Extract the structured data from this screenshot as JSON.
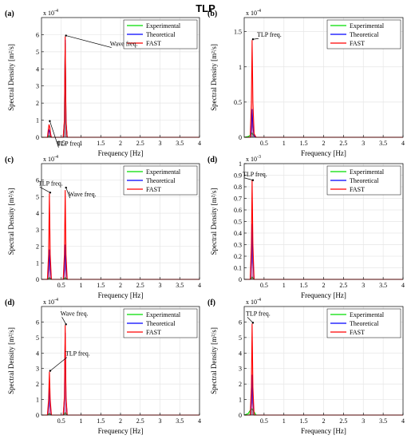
{
  "figure_title": "TLP",
  "colors": {
    "Experimental": "#00dd00",
    "Theoretical": "#0000ff",
    "FAST": "#ff0000",
    "grid": "#e6e6e6"
  },
  "chart_data": [
    {
      "panel": "(a)",
      "type": "line",
      "xlabel": "Frequency [Hz]",
      "ylabel": "Spectral Density [m²/s]",
      "exponent": "x 10",
      "exponent_power": "-4",
      "xlim": [
        0,
        4
      ],
      "ylim": [
        0,
        7
      ],
      "xticks": [
        0.5,
        1,
        1.5,
        2,
        2.5,
        3,
        3.5,
        4
      ],
      "yticks": [
        0,
        1,
        2,
        3,
        4,
        5,
        6
      ],
      "grid": true,
      "legend_position": "top-right",
      "legend": [
        "Experimental",
        "Theoretical",
        "FAST"
      ],
      "annotations": [
        {
          "text": "Wave freq.",
          "x": 0.6,
          "y": 5.9
        },
        {
          "text": "TLP freq.",
          "x": 0.19,
          "y": 0.9
        }
      ],
      "series": [
        {
          "name": "Experimental",
          "x": [
            0,
            0.15,
            0.19,
            0.22,
            0.25,
            0.55,
            0.58,
            0.6,
            0.62,
            0.65,
            1.0,
            4.0
          ],
          "y": [
            0,
            0,
            0.1,
            0.05,
            0,
            0,
            0.8,
            5.5,
            0.8,
            0,
            0,
            0
          ]
        },
        {
          "name": "Theoretical",
          "x": [
            0,
            0.15,
            0.19,
            0.22,
            0.25,
            0.55,
            0.58,
            0.6,
            0.62,
            0.65,
            1.0,
            4.0
          ],
          "y": [
            0,
            0,
            0.45,
            0.2,
            0,
            0,
            0.9,
            5.7,
            0.9,
            0,
            0,
            0
          ]
        },
        {
          "name": "FAST",
          "x": [
            0,
            0.15,
            0.17,
            0.19,
            0.21,
            0.23,
            0.25,
            0.55,
            0.58,
            0.6,
            0.62,
            0.65,
            1.0,
            4.0
          ],
          "y": [
            0,
            0,
            0.4,
            0.75,
            0.6,
            0.2,
            0,
            0,
            1.0,
            5.9,
            1.0,
            0,
            0,
            0
          ]
        }
      ]
    },
    {
      "panel": "(b)",
      "type": "line",
      "xlabel": "Frequency [Hz]",
      "ylabel": "Spectral Density [m²/s]",
      "exponent": "x 10",
      "exponent_power": "-4",
      "xlim": [
        0,
        4
      ],
      "ylim": [
        0,
        1.7
      ],
      "xticks": [
        0.5,
        1,
        1.5,
        2,
        2.5,
        3,
        3.5,
        4
      ],
      "yticks": [
        0,
        0.5,
        1,
        1.5
      ],
      "grid": true,
      "legend_position": "top-right",
      "legend": [
        "Experimental",
        "Theoretical",
        "FAST"
      ],
      "annotations": [
        {
          "text": "TLP freq.",
          "x": 0.2,
          "y": 1.38
        }
      ],
      "series": [
        {
          "name": "Experimental",
          "x": [
            0,
            0.1,
            0.15,
            0.18,
            0.2,
            0.22,
            0.25,
            0.3,
            4.0
          ],
          "y": [
            0,
            0.01,
            0.03,
            0.05,
            0.06,
            0.04,
            0.02,
            0,
            0
          ]
        },
        {
          "name": "Theoretical",
          "x": [
            0,
            0.15,
            0.18,
            0.2,
            0.22,
            0.25,
            0.3,
            4.0
          ],
          "y": [
            0,
            0,
            0.1,
            0.4,
            0.15,
            0.02,
            0,
            0
          ]
        },
        {
          "name": "FAST",
          "x": [
            0,
            0.15,
            0.18,
            0.2,
            0.22,
            0.25,
            0.3,
            4.0
          ],
          "y": [
            0,
            0,
            0.5,
            1.38,
            0.5,
            0.05,
            0,
            0
          ]
        }
      ]
    },
    {
      "panel": "(c)",
      "type": "line",
      "xlabel": "Frequency [Hz]",
      "ylabel": "Spectral Density [m²/s]",
      "exponent": "x 10",
      "exponent_power": "-4",
      "xlim": [
        0,
        4
      ],
      "ylim": [
        0,
        7
      ],
      "xticks": [
        0.5,
        1,
        1.5,
        2,
        2.5,
        3,
        3.5,
        4
      ],
      "yticks": [
        0,
        1,
        2,
        3,
        4,
        5,
        6
      ],
      "grid": true,
      "legend_position": "top-right",
      "legend": [
        "Experimental",
        "Theoretical",
        "FAST"
      ],
      "annotations": [
        {
          "text": "TLP freq.",
          "x": 0.2,
          "y": 5.2
        },
        {
          "text": "Wave freq.",
          "x": 0.6,
          "y": 5.5
        }
      ],
      "series": [
        {
          "name": "Experimental",
          "x": [
            0,
            0.15,
            0.2,
            0.25,
            0.55,
            0.6,
            0.65,
            4.0
          ],
          "y": [
            0,
            0,
            0.1,
            0,
            0,
            0.1,
            0,
            0
          ]
        },
        {
          "name": "Theoretical",
          "x": [
            0,
            0.15,
            0.18,
            0.2,
            0.22,
            0.25,
            0.55,
            0.58,
            0.6,
            0.62,
            0.65,
            4.0
          ],
          "y": [
            0,
            0,
            0.6,
            1.8,
            0.6,
            0,
            0,
            0.6,
            2.1,
            0.6,
            0,
            0
          ]
        },
        {
          "name": "FAST",
          "x": [
            0,
            0.15,
            0.18,
            0.2,
            0.22,
            0.25,
            0.55,
            0.58,
            0.6,
            0.62,
            0.65,
            4.0
          ],
          "y": [
            0,
            0,
            1.5,
            5.2,
            1.5,
            0,
            0,
            1.5,
            5.4,
            1.5,
            0,
            0
          ]
        }
      ]
    },
    {
      "panel": "(d)",
      "type": "line",
      "xlabel": "Frequency [Hz]",
      "ylabel": "Spectral Density [m²/s]",
      "exponent": "x 10",
      "exponent_power": "-3",
      "xlim": [
        0,
        4
      ],
      "ylim": [
        0,
        1
      ],
      "xticks": [
        0.5,
        1,
        1.5,
        2,
        2.5,
        3,
        3.5,
        4
      ],
      "yticks": [
        0,
        0.1,
        0.2,
        0.3,
        0.4,
        0.5,
        0.6,
        0.7,
        0.8,
        0.9,
        1
      ],
      "grid": true,
      "legend_position": "top-right",
      "legend": [
        "Experimental",
        "Theoretical",
        "FAST"
      ],
      "annotations": [
        {
          "text": "TLP freq.",
          "x": 0.2,
          "y": 0.85
        }
      ],
      "series": [
        {
          "name": "Experimental",
          "x": [
            0,
            0.15,
            0.2,
            0.25,
            4.0
          ],
          "y": [
            0,
            0,
            0.02,
            0,
            0
          ]
        },
        {
          "name": "Theoretical",
          "x": [
            0,
            0.15,
            0.18,
            0.2,
            0.22,
            0.25,
            4.0
          ],
          "y": [
            0,
            0,
            0.15,
            0.48,
            0.15,
            0,
            0
          ]
        },
        {
          "name": "FAST",
          "x": [
            0,
            0.15,
            0.18,
            0.2,
            0.22,
            0.25,
            4.0
          ],
          "y": [
            0,
            0,
            0.3,
            0.86,
            0.3,
            0,
            0
          ]
        }
      ]
    },
    {
      "panel": "(d)",
      "type": "line",
      "xlabel": "Frequency [Hz]",
      "ylabel": "Spectral Density [m²/s]",
      "exponent": "x 10",
      "exponent_power": "-4",
      "xlim": [
        0,
        4
      ],
      "ylim": [
        0,
        7
      ],
      "xticks": [
        0.5,
        1,
        1.5,
        2,
        2.5,
        3,
        3.5,
        4
      ],
      "yticks": [
        0,
        1,
        2,
        3,
        4,
        5,
        6
      ],
      "grid": true,
      "legend_position": "top-right",
      "legend": [
        "Experimental",
        "Theoretical",
        "FAST"
      ],
      "annotations": [
        {
          "text": "Wave freq.",
          "x": 0.6,
          "y": 5.8
        },
        {
          "text": "TLP freq.",
          "x": 0.2,
          "y": 2.8
        }
      ],
      "series": [
        {
          "name": "Experimental",
          "x": [
            0,
            0.15,
            0.2,
            0.25,
            0.55,
            0.6,
            0.65,
            4.0
          ],
          "y": [
            0,
            0,
            0.1,
            0,
            0,
            0.15,
            0,
            0
          ]
        },
        {
          "name": "Theoretical",
          "x": [
            0,
            0.15,
            0.18,
            0.2,
            0.22,
            0.25,
            0.55,
            0.58,
            0.6,
            0.62,
            0.65,
            4.0
          ],
          "y": [
            0,
            0,
            0.6,
            1.8,
            0.6,
            0,
            0,
            1.0,
            5.3,
            1.0,
            0,
            0
          ]
        },
        {
          "name": "FAST",
          "x": [
            0,
            0.15,
            0.18,
            0.2,
            0.22,
            0.25,
            0.55,
            0.58,
            0.6,
            0.62,
            0.65,
            4.0
          ],
          "y": [
            0,
            0,
            1.0,
            2.8,
            1.0,
            0,
            0,
            1.2,
            5.8,
            1.2,
            0,
            0
          ]
        }
      ]
    },
    {
      "panel": "(f)",
      "type": "line",
      "xlabel": "Frequency [Hz]",
      "ylabel": "Spectral Density [m²/s]",
      "exponent": "x 10",
      "exponent_power": "-4",
      "xlim": [
        0,
        4
      ],
      "ylim": [
        0,
        7
      ],
      "xticks": [
        0.5,
        1,
        1.5,
        2,
        2.5,
        3,
        3.5,
        4
      ],
      "yticks": [
        0,
        1,
        2,
        3,
        4,
        5,
        6
      ],
      "grid": true,
      "legend_position": "top-right",
      "legend": [
        "Experimental",
        "Theoretical",
        "FAST"
      ],
      "annotations": [
        {
          "text": "TLP freq.",
          "x": 0.2,
          "y": 5.9
        }
      ],
      "series": [
        {
          "name": "Experimental",
          "x": [
            0,
            0.1,
            0.15,
            0.2,
            0.25,
            0.3,
            4.0
          ],
          "y": [
            0,
            0.1,
            0.3,
            0.4,
            0.2,
            0,
            0
          ]
        },
        {
          "name": "Theoretical",
          "x": [
            0,
            0.15,
            0.18,
            0.2,
            0.22,
            0.25,
            4.0
          ],
          "y": [
            0,
            0,
            0.8,
            2.6,
            0.8,
            0,
            0
          ]
        },
        {
          "name": "FAST",
          "x": [
            0,
            0.15,
            0.18,
            0.2,
            0.22,
            0.25,
            4.0
          ],
          "y": [
            0,
            0,
            1.8,
            5.9,
            1.8,
            0,
            0
          ]
        }
      ]
    }
  ]
}
